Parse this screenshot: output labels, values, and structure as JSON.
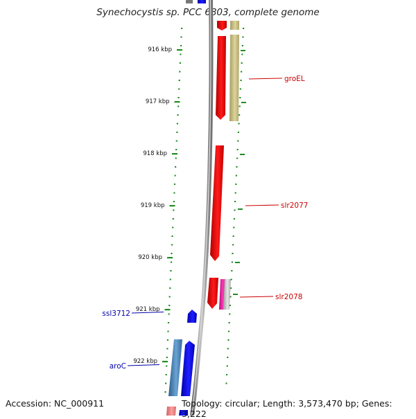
{
  "title": "Synechocystis sp. PCC 6803, complete genome",
  "footer": {
    "accession": "Accession: NC_000911",
    "summary": "Topology: circular; Length: 3,573,470 bp; Genes: 3,222"
  },
  "ticks": [
    {
      "label": "916 kbp",
      "kbp": 916
    },
    {
      "label": "917 kbp",
      "kbp": 917
    },
    {
      "label": "918 kbp",
      "kbp": 918
    },
    {
      "label": "919 kbp",
      "kbp": 919
    },
    {
      "label": "920 kbp",
      "kbp": 920
    },
    {
      "label": "921 kbp",
      "kbp": 921
    },
    {
      "label": "922 kbp",
      "kbp": 922
    }
  ],
  "gene_labels": [
    {
      "name": "groEL",
      "strand": "forward",
      "color": "#cc0000"
    },
    {
      "name": "slr2077",
      "strand": "forward",
      "color": "#cc0000"
    },
    {
      "name": "slr2078",
      "strand": "forward",
      "color": "#cc0000"
    },
    {
      "name": "ssl3712",
      "strand": "reverse",
      "color": "#0000aa"
    },
    {
      "name": "aroC",
      "strand": "reverse",
      "color": "#0000aa"
    }
  ],
  "colors": {
    "forward_gene": "#e00000",
    "reverse_gene": "#0000ee",
    "tick_green": "#228b22",
    "backbone": "#888888",
    "khaki": "#c8bf85",
    "steelblue": "#4a86b8",
    "magenta": "#e0199a",
    "light_gray": "#c8c8c8",
    "salmon": "#f08080"
  }
}
